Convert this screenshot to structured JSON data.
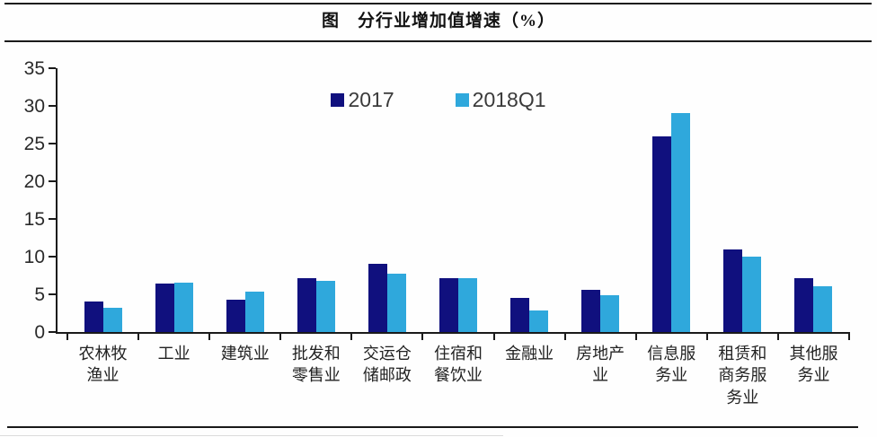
{
  "figure": {
    "title": "图　分行业增加值增速（%）"
  },
  "chart_data": {
    "type": "bar",
    "title": "图 分行业增加值增速（%）",
    "xlabel": "",
    "ylabel": "",
    "ylim": [
      0,
      35
    ],
    "yticks": [
      0,
      5,
      10,
      15,
      20,
      25,
      30,
      35
    ],
    "grid": false,
    "legend_position": "top-center",
    "categories": [
      "农林牧渔业",
      "工业",
      "建筑业",
      "批发和零售业",
      "交运仓储邮政",
      "住宿和餐饮业",
      "金融业",
      "房地产业",
      "信息服务业",
      "租赁和商务服务业",
      "其他服务业"
    ],
    "category_display_lines": [
      "农林牧\n渔业",
      "工业",
      "建筑业",
      "批发和\n零售业",
      "交运仓\n储邮政",
      "住宿和\n餐饮业",
      "金融业",
      "房地产\n业",
      "信息服\n务业",
      "租赁和\n商务服\n务业",
      "其他服\n务业"
    ],
    "series": [
      {
        "name": "2017",
        "color": "#10107E",
        "values": [
          4.1,
          6.4,
          4.3,
          7.1,
          9.0,
          7.1,
          4.5,
          5.6,
          26.0,
          10.9,
          7.1
        ]
      },
      {
        "name": "2018Q1",
        "color": "#2FA8DC",
        "values": [
          3.2,
          6.5,
          5.4,
          6.8,
          7.7,
          7.1,
          2.9,
          4.9,
          29.1,
          10.0,
          6.1
        ]
      }
    ]
  },
  "axis_colors": {
    "line": "#1a1a1a",
    "tick_text": "#2a2a2a",
    "category_text": "#222222"
  }
}
